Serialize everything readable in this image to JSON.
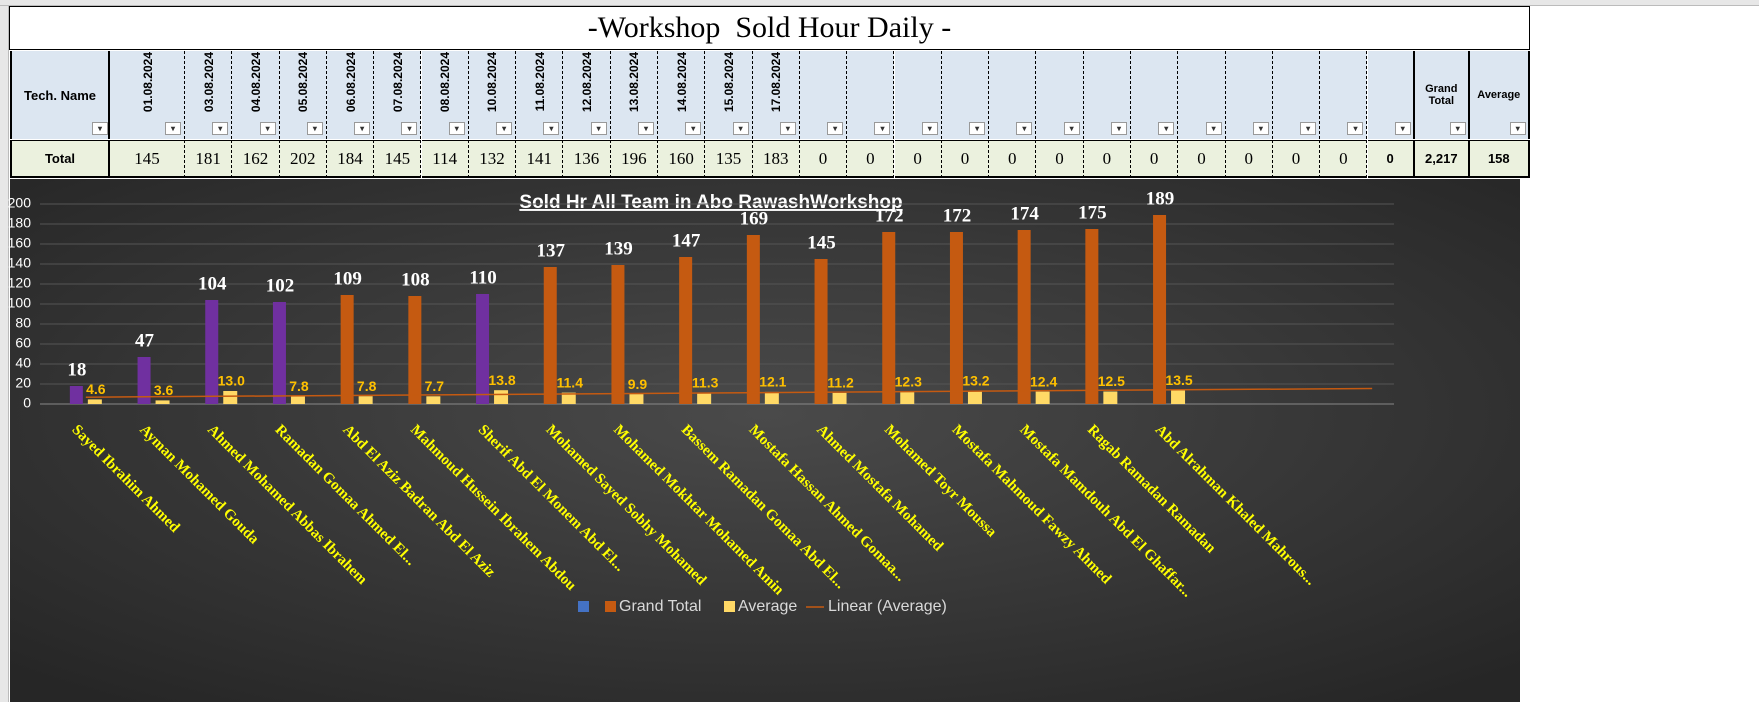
{
  "title": "-Workshop  Sold Hour Daily -",
  "table": {
    "header": [
      "Tech. Name",
      "01.08.2024",
      "03.08.2024",
      "04.08.2024",
      "05.08.2024",
      "06.08.2024",
      "07.08.2024",
      "08.08.2024",
      "10.08.2024",
      "11.08.2024",
      "12.08.2024",
      "13.08.2024",
      "14.08.2024",
      "15.08.2024",
      "17.08.2024",
      null,
      null,
      null,
      null,
      null,
      null,
      null,
      null,
      null,
      null,
      null,
      null,
      null,
      "Grand Total",
      "Average"
    ],
    "rows": [
      [
        "Total",
        145,
        181,
        162,
        202,
        184,
        145,
        114,
        132,
        141,
        136,
        196,
        160,
        135,
        183,
        0,
        0,
        0,
        0,
        0,
        0,
        0,
        0,
        0,
        0,
        0,
        0,
        0,
        "2,217",
        158
      ]
    ]
  },
  "chart_data": {
    "type": "bar",
    "title": "Sold Hr All Team in Abo RawashWorkshop",
    "categories": [
      "Sayed Ibrahim Ahmed",
      "Ayman Mohamed Gouda",
      "Ahmed Mohamed Abbas Ibrahem",
      "Ramadan Gomaa Ahmed El...",
      "Abd El Aziz Badran Abd El Aziz",
      "Mahmoud Hussein Ibrahem Abdou",
      "Sherif Abd El Monem Abd El...",
      "Mohamed Sayed Sobhy Mohamed",
      "Mohamed Mokhtar Mohamed Amin",
      "Bassem Ramadan Gomaa Abd El...",
      "Mostafa Hassan Ahmed Gomaa...",
      "Ahmed Mostafa Mohamed",
      "Mohamed Toyr Moussa",
      "Mostafa Mahmoud Fawzy Ahmed",
      "Mostafa Mamdouh Abd El Ghaffar...",
      "Ragab Ramadan Ramadan",
      "Abd Alrahman Khaled Mahrous...",
      null,
      null,
      null
    ],
    "series": [
      {
        "name": "Grand Total",
        "color": "#c55a11",
        "colors": [
          "#7030a0",
          "#7030a0",
          "#7030a0",
          "#7030a0",
          "#c55a11",
          "#c55a11",
          "#7030a0",
          "#c55a11",
          "#c55a11",
          "#c55a11",
          "#c55a11",
          "#c55a11",
          "#c55a11",
          "#c55a11",
          "#c55a11",
          "#c55a11",
          "#c55a11",
          null,
          null,
          null
        ],
        "values": [
          18,
          47,
          104,
          102,
          109,
          108,
          110,
          137,
          139,
          147,
          169,
          145,
          172,
          172,
          174,
          175,
          189,
          null,
          null,
          null
        ]
      },
      {
        "name": "Average",
        "color": "#ffd966",
        "values": [
          4.6,
          3.6,
          13.0,
          7.8,
          7.8,
          7.7,
          13.8,
          11.4,
          9.9,
          11.3,
          12.1,
          11.2,
          12.3,
          13.2,
          12.4,
          12.5,
          13.5,
          null,
          null,
          null
        ],
        "value_labels": [
          "4.6",
          "3.6",
          "13.0",
          "7.8",
          "7.8",
          "7.7",
          "13.8",
          "11.4",
          "9.9",
          "11.3",
          "12.1",
          "11.2",
          "12.3",
          "13.2",
          "12.4",
          "12.5",
          "13.5",
          null,
          null,
          null
        ]
      }
    ],
    "trendline": {
      "name": "Linear (Average)",
      "color": "#c55a11",
      "values": [
        6.8,
        15.5
      ]
    },
    "ylim": [
      0,
      200
    ],
    "yticks": [
      0,
      20,
      40,
      60,
      80,
      100,
      120,
      140,
      160,
      180,
      200
    ],
    "grid": true
  }
}
